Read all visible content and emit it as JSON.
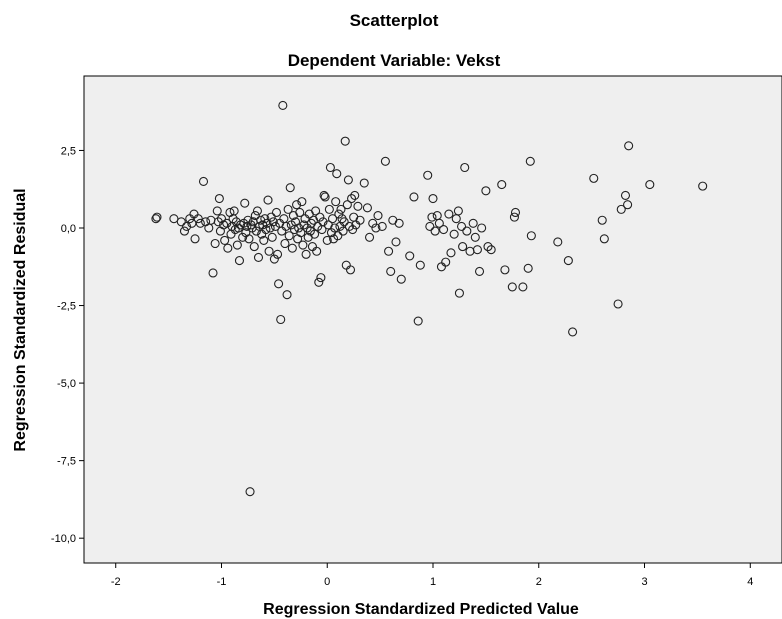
{
  "chart_data": {
    "type": "scatter",
    "title": "Scatterplot",
    "subtitle": "Dependent Variable: Vekst",
    "xlabel": "Regression Standardized Predicted Value",
    "ylabel": "Regression Standardized Residual",
    "xlim": [
      -2.3,
      4.3
    ],
    "ylim": [
      -10.8,
      4.9
    ],
    "x_ticks": [
      -2,
      -1,
      0,
      1,
      2,
      3,
      4
    ],
    "x_tick_labels": [
      "-2",
      "-1",
      "0",
      "1",
      "2",
      "3",
      "4"
    ],
    "y_ticks": [
      2.5,
      0,
      -2.5,
      -5,
      -7.5,
      -10
    ],
    "y_tick_labels": [
      "2,5",
      "0,0",
      "-2,5",
      "-5,0",
      "-7,5",
      "-10,0"
    ],
    "grid": false,
    "colors": {
      "plot_background": "#efefef",
      "marker_stroke": "#222222"
    },
    "points": [
      {
        "x": -1.62,
        "y": 0.3
      },
      {
        "x": -1.61,
        "y": 0.35
      },
      {
        "x": -1.45,
        "y": 0.3
      },
      {
        "x": -1.38,
        "y": 0.2
      },
      {
        "x": -1.35,
        "y": -0.1
      },
      {
        "x": -1.33,
        "y": 0.05
      },
      {
        "x": -1.3,
        "y": 0.3
      },
      {
        "x": -1.28,
        "y": 0.15
      },
      {
        "x": -1.26,
        "y": 0.45
      },
      {
        "x": -1.25,
        "y": -0.35
      },
      {
        "x": -1.22,
        "y": 0.3
      },
      {
        "x": -1.2,
        "y": 0.15
      },
      {
        "x": -1.17,
        "y": 1.5
      },
      {
        "x": -1.15,
        "y": 0.2
      },
      {
        "x": -1.12,
        "y": 0.0
      },
      {
        "x": -1.1,
        "y": 0.25
      },
      {
        "x": -1.08,
        "y": -1.45
      },
      {
        "x": -1.06,
        "y": -0.5
      },
      {
        "x": -1.04,
        "y": 0.55
      },
      {
        "x": -1.03,
        "y": 0.2
      },
      {
        "x": -1.02,
        "y": 0.95
      },
      {
        "x": -1.01,
        "y": -0.1
      },
      {
        "x": -1.0,
        "y": 0.3
      },
      {
        "x": -0.98,
        "y": 0.1
      },
      {
        "x": -0.97,
        "y": -0.4
      },
      {
        "x": -0.95,
        "y": 0.15
      },
      {
        "x": -0.94,
        "y": -0.65
      },
      {
        "x": -0.92,
        "y": 0.5
      },
      {
        "x": -0.91,
        "y": -0.2
      },
      {
        "x": -0.9,
        "y": 0.05
      },
      {
        "x": -0.89,
        "y": 0.3
      },
      {
        "x": -0.88,
        "y": 0.55
      },
      {
        "x": -0.87,
        "y": -0.05
      },
      {
        "x": -0.86,
        "y": 0.2
      },
      {
        "x": -0.85,
        "y": -0.55
      },
      {
        "x": -0.84,
        "y": 0.0
      },
      {
        "x": -0.83,
        "y": -1.05
      },
      {
        "x": -0.82,
        "y": 0.1
      },
      {
        "x": -0.8,
        "y": -0.3
      },
      {
        "x": -0.79,
        "y": 0.15
      },
      {
        "x": -0.78,
        "y": 0.8
      },
      {
        "x": -0.77,
        "y": -0.15
      },
      {
        "x": -0.76,
        "y": 0.05
      },
      {
        "x": -0.75,
        "y": 0.25
      },
      {
        "x": -0.74,
        "y": -0.35
      },
      {
        "x": -0.73,
        "y": -8.5
      },
      {
        "x": -0.72,
        "y": 0.1
      },
      {
        "x": -0.71,
        "y": 0.0
      },
      {
        "x": -0.7,
        "y": 0.2
      },
      {
        "x": -0.69,
        "y": -0.6
      },
      {
        "x": -0.68,
        "y": 0.4
      },
      {
        "x": -0.67,
        "y": -0.1
      },
      {
        "x": -0.66,
        "y": 0.55
      },
      {
        "x": -0.65,
        "y": -0.95
      },
      {
        "x": -0.64,
        "y": 0.05
      },
      {
        "x": -0.63,
        "y": 0.25
      },
      {
        "x": -0.62,
        "y": -0.2
      },
      {
        "x": -0.61,
        "y": 0.1
      },
      {
        "x": -0.6,
        "y": -0.4
      },
      {
        "x": -0.59,
        "y": 0.3
      },
      {
        "x": -0.58,
        "y": -0.05
      },
      {
        "x": -0.57,
        "y": 0.15
      },
      {
        "x": -0.56,
        "y": 0.9
      },
      {
        "x": -0.55,
        "y": -0.75
      },
      {
        "x": -0.54,
        "y": 0.0
      },
      {
        "x": -0.53,
        "y": 0.35
      },
      {
        "x": -0.52,
        "y": -0.3
      },
      {
        "x": -0.51,
        "y": 0.2
      },
      {
        "x": -0.5,
        "y": -1.0
      },
      {
        "x": -0.49,
        "y": 0.05
      },
      {
        "x": -0.48,
        "y": 0.5
      },
      {
        "x": -0.47,
        "y": -0.85
      },
      {
        "x": -0.46,
        "y": -1.8
      },
      {
        "x": -0.45,
        "y": 0.15
      },
      {
        "x": -0.44,
        "y": -2.95
      },
      {
        "x": -0.43,
        "y": -0.1
      },
      {
        "x": -0.42,
        "y": 3.95
      },
      {
        "x": -0.41,
        "y": 0.3
      },
      {
        "x": -0.4,
        "y": -0.5
      },
      {
        "x": -0.39,
        "y": 0.05
      },
      {
        "x": -0.38,
        "y": -2.15
      },
      {
        "x": -0.37,
        "y": 0.6
      },
      {
        "x": -0.36,
        "y": -0.25
      },
      {
        "x": -0.35,
        "y": 1.3
      },
      {
        "x": -0.34,
        "y": 0.1
      },
      {
        "x": -0.33,
        "y": -0.65
      },
      {
        "x": -0.32,
        "y": 0.4
      },
      {
        "x": -0.31,
        "y": -0.05
      },
      {
        "x": -0.3,
        "y": 0.2
      },
      {
        "x": -0.29,
        "y": 0.75
      },
      {
        "x": -0.28,
        "y": -0.35
      },
      {
        "x": -0.27,
        "y": 0.0
      },
      {
        "x": -0.26,
        "y": 0.5
      },
      {
        "x": -0.25,
        "y": -0.15
      },
      {
        "x": -0.24,
        "y": 0.85
      },
      {
        "x": -0.23,
        "y": -0.55
      },
      {
        "x": -0.22,
        "y": 0.1
      },
      {
        "x": -0.21,
        "y": 0.3
      },
      {
        "x": -0.2,
        "y": -0.85
      },
      {
        "x": -0.19,
        "y": 0.0
      },
      {
        "x": -0.18,
        "y": -0.3
      },
      {
        "x": -0.17,
        "y": 0.45
      },
      {
        "x": -0.16,
        "y": -0.1
      },
      {
        "x": -0.15,
        "y": 0.15
      },
      {
        "x": -0.14,
        "y": -0.6
      },
      {
        "x": -0.13,
        "y": 0.25
      },
      {
        "x": -0.12,
        "y": -0.2
      },
      {
        "x": -0.11,
        "y": 0.55
      },
      {
        "x": -0.1,
        "y": -0.75
      },
      {
        "x": -0.09,
        "y": 0.05
      },
      {
        "x": -0.08,
        "y": -1.75
      },
      {
        "x": -0.07,
        "y": 0.35
      },
      {
        "x": -0.06,
        "y": -1.6
      },
      {
        "x": -0.05,
        "y": -0.05
      },
      {
        "x": -0.04,
        "y": 0.2
      },
      {
        "x": -0.03,
        "y": 1.05
      },
      {
        "x": -0.02,
        "y": 1.0
      },
      {
        "x": 0.0,
        "y": -0.4
      },
      {
        "x": 0.01,
        "y": 0.1
      },
      {
        "x": 0.02,
        "y": 0.6
      },
      {
        "x": 0.03,
        "y": 1.95
      },
      {
        "x": 0.04,
        "y": -0.15
      },
      {
        "x": 0.05,
        "y": 0.3
      },
      {
        "x": 0.06,
        "y": -0.35
      },
      {
        "x": 0.07,
        "y": 0.0
      },
      {
        "x": 0.08,
        "y": 0.85
      },
      {
        "x": 0.09,
        "y": 1.75
      },
      {
        "x": 0.1,
        "y": -0.25
      },
      {
        "x": 0.11,
        "y": 0.45
      },
      {
        "x": 0.12,
        "y": 0.05
      },
      {
        "x": 0.13,
        "y": 0.6
      },
      {
        "x": 0.14,
        "y": 0.3
      },
      {
        "x": 0.15,
        "y": -0.1
      },
      {
        "x": 0.16,
        "y": 0.2
      },
      {
        "x": 0.17,
        "y": 2.8
      },
      {
        "x": 0.18,
        "y": -1.2
      },
      {
        "x": 0.19,
        "y": 0.75
      },
      {
        "x": 0.2,
        "y": 1.55
      },
      {
        "x": 0.21,
        "y": 0.05
      },
      {
        "x": 0.22,
        "y": -1.35
      },
      {
        "x": 0.23,
        "y": 0.95
      },
      {
        "x": 0.24,
        "y": -0.05
      },
      {
        "x": 0.25,
        "y": 0.35
      },
      {
        "x": 0.26,
        "y": 1.05
      },
      {
        "x": 0.27,
        "y": 0.1
      },
      {
        "x": 0.29,
        "y": 0.7
      },
      {
        "x": 0.31,
        "y": 0.25
      },
      {
        "x": 0.35,
        "y": 1.45
      },
      {
        "x": 0.38,
        "y": 0.65
      },
      {
        "x": 0.4,
        "y": -0.3
      },
      {
        "x": 0.43,
        "y": 0.15
      },
      {
        "x": 0.46,
        "y": 0.0
      },
      {
        "x": 0.48,
        "y": 0.4
      },
      {
        "x": 0.52,
        "y": 0.05
      },
      {
        "x": 0.55,
        "y": 2.15
      },
      {
        "x": 0.58,
        "y": -0.75
      },
      {
        "x": 0.6,
        "y": -1.4
      },
      {
        "x": 0.62,
        "y": 0.25
      },
      {
        "x": 0.65,
        "y": -0.45
      },
      {
        "x": 0.68,
        "y": 0.15
      },
      {
        "x": 0.7,
        "y": -1.65
      },
      {
        "x": 0.78,
        "y": -0.9
      },
      {
        "x": 0.82,
        "y": 1.0
      },
      {
        "x": 0.86,
        "y": -3.0
      },
      {
        "x": 0.88,
        "y": -1.2
      },
      {
        "x": 0.95,
        "y": 1.7
      },
      {
        "x": 0.97,
        "y": 0.05
      },
      {
        "x": 0.99,
        "y": 0.35
      },
      {
        "x": 1.0,
        "y": 0.95
      },
      {
        "x": 1.02,
        "y": -0.1
      },
      {
        "x": 1.04,
        "y": 0.4
      },
      {
        "x": 1.06,
        "y": 0.15
      },
      {
        "x": 1.08,
        "y": -1.25
      },
      {
        "x": 1.1,
        "y": -0.05
      },
      {
        "x": 1.12,
        "y": -1.1
      },
      {
        "x": 1.15,
        "y": 0.45
      },
      {
        "x": 1.17,
        "y": -0.8
      },
      {
        "x": 1.2,
        "y": -0.2
      },
      {
        "x": 1.22,
        "y": 0.3
      },
      {
        "x": 1.24,
        "y": 0.55
      },
      {
        "x": 1.25,
        "y": -2.1
      },
      {
        "x": 1.27,
        "y": 0.05
      },
      {
        "x": 1.28,
        "y": -0.6
      },
      {
        "x": 1.3,
        "y": 1.95
      },
      {
        "x": 1.32,
        "y": -0.1
      },
      {
        "x": 1.35,
        "y": -0.75
      },
      {
        "x": 1.38,
        "y": 0.15
      },
      {
        "x": 1.4,
        "y": -0.3
      },
      {
        "x": 1.42,
        "y": -0.7
      },
      {
        "x": 1.44,
        "y": -1.4
      },
      {
        "x": 1.46,
        "y": 0.0
      },
      {
        "x": 1.5,
        "y": 1.2
      },
      {
        "x": 1.52,
        "y": -0.6
      },
      {
        "x": 1.55,
        "y": -0.7
      },
      {
        "x": 1.65,
        "y": 1.4
      },
      {
        "x": 1.68,
        "y": -1.35
      },
      {
        "x": 1.75,
        "y": -1.9
      },
      {
        "x": 1.77,
        "y": 0.35
      },
      {
        "x": 1.78,
        "y": 0.5
      },
      {
        "x": 1.85,
        "y": -1.9
      },
      {
        "x": 1.9,
        "y": -1.3
      },
      {
        "x": 1.92,
        "y": 2.15
      },
      {
        "x": 1.93,
        "y": -0.25
      },
      {
        "x": 2.18,
        "y": -0.45
      },
      {
        "x": 2.28,
        "y": -1.05
      },
      {
        "x": 2.32,
        "y": -3.35
      },
      {
        "x": 2.52,
        "y": 1.6
      },
      {
        "x": 2.6,
        "y": 0.25
      },
      {
        "x": 2.62,
        "y": -0.35
      },
      {
        "x": 2.75,
        "y": -2.45
      },
      {
        "x": 2.78,
        "y": 0.6
      },
      {
        "x": 2.82,
        "y": 1.05
      },
      {
        "x": 2.84,
        "y": 0.75
      },
      {
        "x": 2.85,
        "y": 2.65
      },
      {
        "x": 3.05,
        "y": 1.4
      },
      {
        "x": 3.55,
        "y": 1.35
      }
    ]
  }
}
